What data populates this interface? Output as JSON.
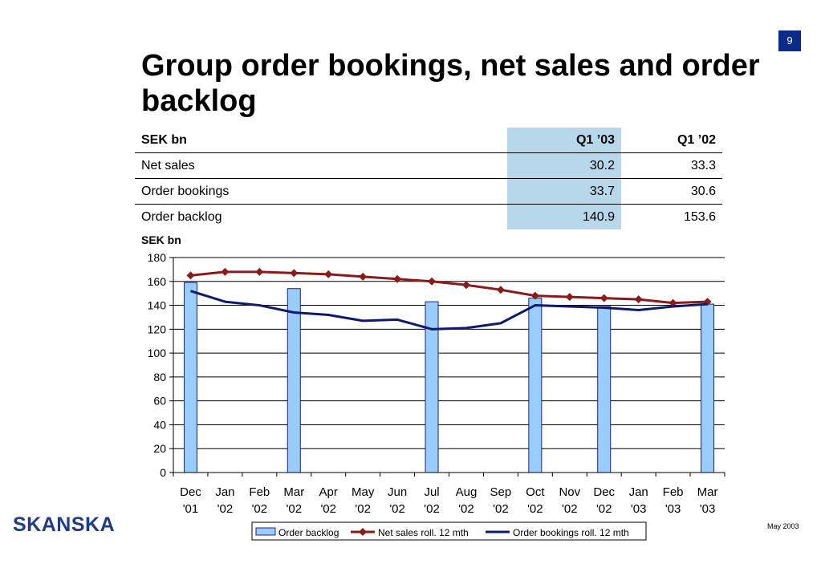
{
  "page_number": "9",
  "title": "Group order bookings, net sales and order backlog",
  "table": {
    "headers": [
      "SEK bn",
      "Q1 ’03",
      "Q1 ’02"
    ],
    "rows": [
      {
        "label": "Net sales",
        "q1_03": "30.2",
        "q1_02": "33.3"
      },
      {
        "label": "Order bookings",
        "q1_03": "33.7",
        "q1_02": "30.6"
      },
      {
        "label": "Order backlog",
        "q1_03": "140.9",
        "q1_02": "153.6"
      }
    ]
  },
  "chart_unit": "SEK bn",
  "footer": {
    "date": "May 2003",
    "logo": "SKANSKA"
  },
  "colors": {
    "bar_fill": "#99ccff",
    "bar_stroke": "#1a237e",
    "net_sales": "#8b1a1a",
    "order_bookings": "#0d1a6e",
    "highlight": "#b7d7ea",
    "page_badge": "#0a2a8c"
  },
  "chart_data": {
    "type": "bar",
    "ylabel": "SEK bn",
    "ylim": [
      0,
      180
    ],
    "yticks": [
      0,
      20,
      40,
      60,
      80,
      100,
      120,
      140,
      160,
      180
    ],
    "grid": true,
    "legend_position": "bottom",
    "categories": [
      [
        "Dec",
        "'01"
      ],
      [
        "Jan",
        "'02"
      ],
      [
        "Feb",
        "'02"
      ],
      [
        "Mar",
        "'02"
      ],
      [
        "Apr",
        "'02"
      ],
      [
        "May",
        "'02"
      ],
      [
        "Jun",
        "'02"
      ],
      [
        "Jul",
        "'02"
      ],
      [
        "Aug",
        "'02"
      ],
      [
        "Sep",
        "'02"
      ],
      [
        "Oct",
        "'02"
      ],
      [
        "Nov",
        "'02"
      ],
      [
        "Dec",
        "'02"
      ],
      [
        "Jan",
        "'03"
      ],
      [
        "Feb",
        "'03"
      ],
      [
        "Mar",
        "'03"
      ]
    ],
    "series": [
      {
        "name": "Order backlog",
        "kind": "bar",
        "values": [
          159,
          null,
          null,
          154,
          null,
          null,
          null,
          143,
          null,
          null,
          146,
          null,
          139,
          null,
          null,
          141
        ]
      },
      {
        "name": "Net sales roll. 12 mth",
        "kind": "line",
        "marker": "diamond",
        "values": [
          165,
          168,
          168,
          167,
          166,
          164,
          162,
          160,
          157,
          153,
          148,
          147,
          146,
          145,
          142,
          143
        ]
      },
      {
        "name": "Order bookings roll. 12 mth",
        "kind": "line",
        "values": [
          152,
          143,
          140,
          134,
          132,
          127,
          128,
          120,
          121,
          125,
          140,
          139,
          138,
          136,
          139,
          141
        ]
      }
    ]
  }
}
